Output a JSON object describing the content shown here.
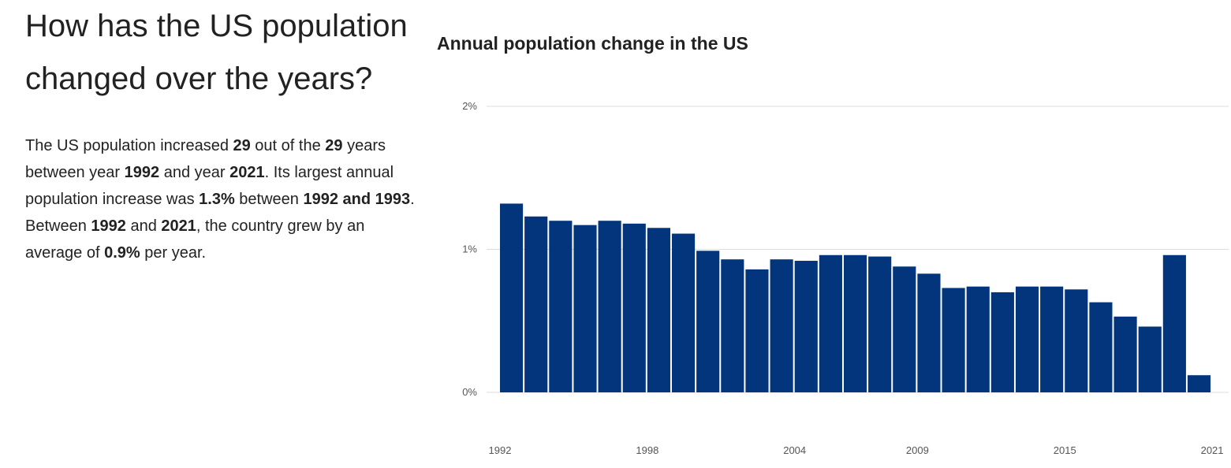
{
  "headline": "How has the US population changed over the years?",
  "summary": {
    "t1": "The US population increased ",
    "n_increase": "29",
    "t2": " out of the ",
    "n_total": "29",
    "t3": " years between year ",
    "year_start": "1992",
    "t4": " and year ",
    "year_end": "2021",
    "t5": ". Its largest annual population increase was ",
    "max_pct": "1.3%",
    "t6": " between ",
    "max_range": "1992 and 1993",
    "t7": ". Between ",
    "range_start": "1992",
    "t8": " and ",
    "range_end": "2021",
    "t9": ", the country grew by an average of ",
    "avg_pct": "0.9%",
    "t10": " per year."
  },
  "chart_data": {
    "type": "bar",
    "title": "Annual population change in the US",
    "xlabel": "",
    "ylabel": "",
    "x": [
      1992,
      1993,
      1994,
      1995,
      1996,
      1997,
      1998,
      1999,
      2000,
      2001,
      2002,
      2003,
      2004,
      2005,
      2006,
      2007,
      2008,
      2009,
      2010,
      2011,
      2012,
      2013,
      2014,
      2015,
      2016,
      2017,
      2018,
      2019,
      2020
    ],
    "values": [
      1.32,
      1.23,
      1.2,
      1.17,
      1.2,
      1.18,
      1.15,
      1.11,
      0.99,
      0.93,
      0.86,
      0.93,
      0.92,
      0.96,
      0.96,
      0.95,
      0.88,
      0.83,
      0.73,
      0.74,
      0.7,
      0.74,
      0.74,
      0.72,
      0.63,
      0.53,
      0.46,
      0.96,
      0.12
    ],
    "ylim": [
      0,
      2
    ],
    "yticks": [
      0,
      1,
      2
    ],
    "ytick_labels": [
      "0%",
      "1%",
      "2%"
    ],
    "xticks": [
      "1992",
      "1998",
      "2004",
      "2009",
      "2015",
      "2021"
    ],
    "grid": "horizontal",
    "bar_color": "#02357c",
    "grid_color": "#dddddd"
  }
}
